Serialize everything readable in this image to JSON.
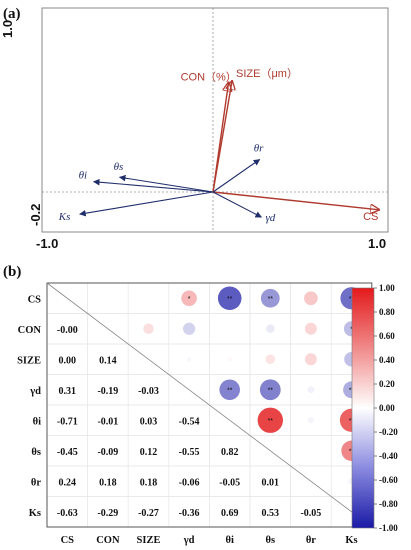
{
  "chart_data": [
    {
      "type": "biplot",
      "panel_label": "(a)",
      "xlim": [
        -1.0,
        1.0
      ],
      "ylim": [
        -0.2,
        1.0
      ],
      "xticks": [
        "-1.0",
        "1.0"
      ],
      "yticks": [
        "1.0",
        "-0.2"
      ],
      "vectors": [
        {
          "name": "CON（%）",
          "x": 0.09,
          "y": 0.74,
          "group": "response"
        },
        {
          "name": "SIZE（μm）",
          "x": 0.11,
          "y": 0.75,
          "group": "response"
        },
        {
          "name": "CS",
          "x": 0.96,
          "y": -0.12,
          "group": "response"
        },
        {
          "name": "θr",
          "x": 0.27,
          "y": 0.22,
          "group": "explanatory"
        },
        {
          "name": "θs",
          "x": -0.54,
          "y": 0.1,
          "group": "explanatory"
        },
        {
          "name": "θi",
          "x": -0.69,
          "y": 0.07,
          "group": "explanatory"
        },
        {
          "name": "Ks",
          "x": -0.77,
          "y": -0.15,
          "group": "explanatory"
        },
        {
          "name": "γd",
          "x": 0.28,
          "y": -0.17,
          "group": "explanatory"
        }
      ]
    },
    {
      "type": "heatmap",
      "panel_label": "(b)",
      "variables": [
        "CS",
        "CON",
        "SIZE",
        "γd",
        "θi",
        "θs",
        "θr",
        "Ks"
      ],
      "lower": [
        [
          "",
          "",
          "",
          "",
          "",
          "",
          "",
          ""
        ],
        [
          "-0.00",
          "",
          "",
          "",
          "",
          "",
          "",
          ""
        ],
        [
          "0.00",
          "0.14",
          "",
          "",
          "",
          "",
          "",
          ""
        ],
        [
          "0.31",
          "-0.19",
          "-0.03",
          "",
          "",
          "",
          "",
          ""
        ],
        [
          "-0.71",
          "-0.01",
          "0.03",
          "-0.54",
          "",
          "",
          "",
          ""
        ],
        [
          "-0.45",
          "-0.09",
          "0.12",
          "-0.55",
          "0.82",
          "",
          "",
          ""
        ],
        [
          "0.24",
          "0.18",
          "0.18",
          "-0.06",
          "-0.05",
          "0.01",
          "",
          ""
        ],
        [
          "-0.63",
          "-0.29",
          "-0.27",
          "-0.36",
          "0.69",
          "0.53",
          "-0.05",
          ""
        ]
      ],
      "significance": [
        {
          "row": "CS",
          "col": "γd",
          "mark": "*"
        },
        {
          "row": "CS",
          "col": "θi",
          "mark": "**"
        },
        {
          "row": "CS",
          "col": "θs",
          "mark": "**"
        },
        {
          "row": "CS",
          "col": "Ks",
          "mark": "**"
        },
        {
          "row": "CON",
          "col": "Ks",
          "mark": "*"
        },
        {
          "row": "γd",
          "col": "θi",
          "mark": "**"
        },
        {
          "row": "γd",
          "col": "θs",
          "mark": "**"
        },
        {
          "row": "γd",
          "col": "Ks",
          "mark": "**"
        },
        {
          "row": "θi",
          "col": "θs",
          "mark": "**"
        },
        {
          "row": "θi",
          "col": "Ks",
          "mark": "**"
        },
        {
          "row": "θs",
          "col": "Ks",
          "mark": "**"
        }
      ],
      "colorbar": {
        "ticks": [
          "1.00",
          "0.80",
          "0.60",
          "0.40",
          "0.20",
          "0.00",
          "-0.20",
          "-0.40",
          "-0.60",
          "-0.80",
          "-1.00"
        ],
        "range": [
          -1.0,
          1.0
        ],
        "colors": {
          "positive": "#e31a1c",
          "neutral": "#ffffff",
          "negative": "#1a1aa6"
        }
      }
    }
  ],
  "colors": {
    "response_vector": "#b03a2e",
    "explanatory_vector": "#1f2d6b",
    "axis_line": "#999999"
  }
}
